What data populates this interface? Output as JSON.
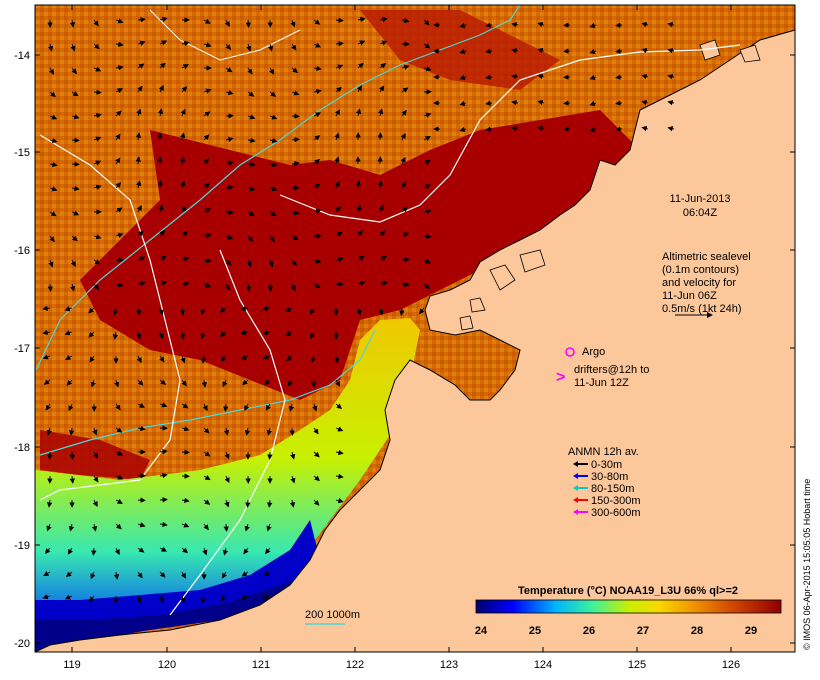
{
  "map": {
    "lon_ticks": [
      "119",
      "120",
      "121",
      "122",
      "123",
      "124",
      "125",
      "126"
    ],
    "lat_ticks": [
      "-14",
      "-15",
      "-16",
      "-17",
      "-18",
      "-19",
      "-20"
    ],
    "timestamp_date": "11-Jun-2013",
    "timestamp_time": "06:04Z",
    "altimetry_lines": [
      "Altimetric sealevel",
      "(0.1m contours)",
      "and velocity for",
      "11-Jun 06Z",
      "0.5m/s (1kt 24h)"
    ],
    "argo_label": "Argo",
    "drifters_lines": [
      "drifters@12h to",
      "11-Jun 12Z"
    ],
    "anmn_title": "ANMN 12h av.",
    "anmn_items": [
      {
        "label": "0-30m",
        "color": "#000000"
      },
      {
        "label": "30-80m",
        "color": "#0000ff"
      },
      {
        "label": "80-150m",
        "color": "#00cccc"
      },
      {
        "label": "150-300m",
        "color": "#ff0000"
      },
      {
        "label": "300-600m",
        "color": "#ff00ff"
      }
    ],
    "isobath_label": "200  1000m",
    "colorbar_title": "Temperature (°C) NOAA19_L3U 66% ql>=2",
    "colorbar_ticks": [
      "24",
      "25",
      "26",
      "27",
      "28",
      "29"
    ],
    "credit": "© IMOS 06-Apr-2015 15:05:05 Hobart time",
    "colors": {
      "land": "#fcc79a",
      "sst_warm": "#a80000",
      "sst_mid": "#d96b00",
      "sst_cool": "#f1cc00",
      "sst_cold": "#00008a",
      "isobath_200": "#4fd6d6",
      "isobath_1000": "#ffffff"
    }
  }
}
